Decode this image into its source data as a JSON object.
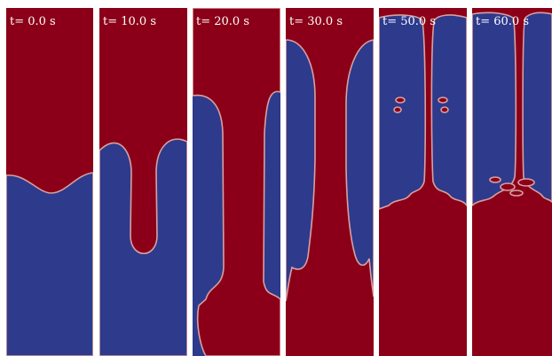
{
  "figure": {
    "colors": {
      "heavy_fluid": "#8b0018",
      "light_fluid": "#2e3a8c",
      "interface": "#d8a0a0",
      "label": "#ffffff",
      "gap": "#ffffff"
    },
    "panels": [
      {
        "label": "t= 0.0 s"
      },
      {
        "label": "t= 10.0 s"
      },
      {
        "label": "t= 20.0 s"
      },
      {
        "label": "t= 30.0 s"
      },
      {
        "label": "t= 50.0 s"
      },
      {
        "label": "t= 60.0 s"
      }
    ]
  }
}
